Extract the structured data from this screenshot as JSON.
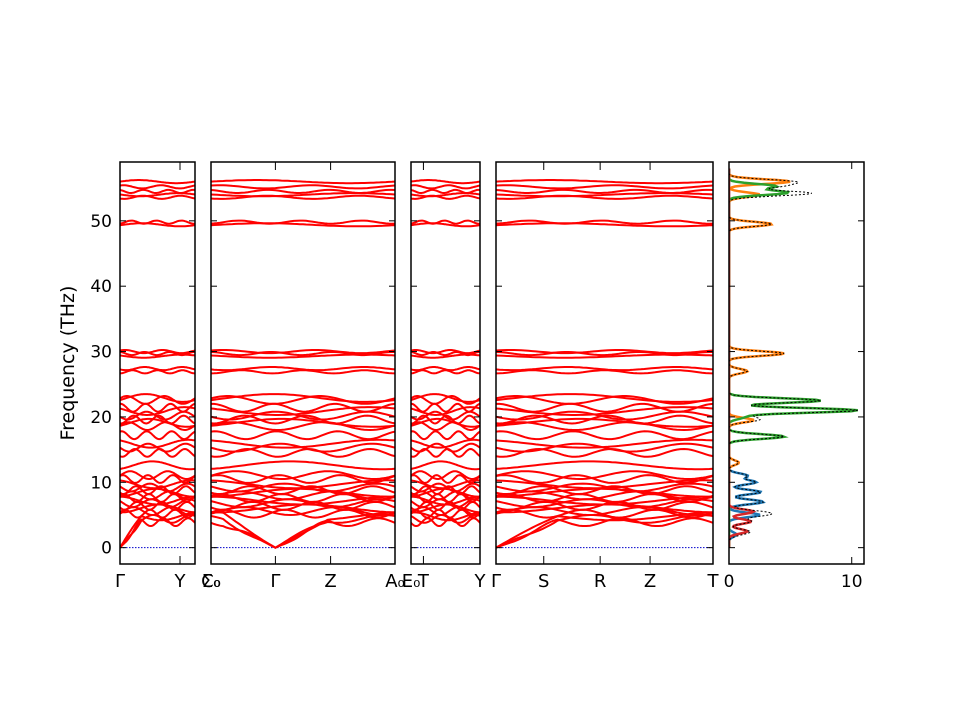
{
  "chart_data": {
    "type": "line",
    "ylabel": "Frequency (THz)",
    "ylim": [
      -2.5,
      59
    ],
    "yticks": [
      0,
      10,
      20,
      30,
      40,
      50
    ],
    "zero_line_color": "#0000cc",
    "band_color": "#ff0000",
    "band_levels": [
      56.0,
      55.2,
      54.5,
      54.0,
      53.6,
      49.8,
      49.4,
      30.0,
      29.7,
      29.3,
      27.4,
      26.9,
      22.9,
      22.6,
      21.4,
      20.9,
      20.2,
      19.6,
      19.1,
      18.6,
      17.2,
      15.9,
      15.3,
      14.5,
      12.6,
      11.1,
      10.5,
      9.7,
      9.2,
      8.8,
      8.4,
      8.0,
      7.6,
      7.2,
      6.8,
      6.4,
      6.0,
      5.6,
      5.2,
      4.8,
      4.4,
      3.9
    ],
    "band_segments": [
      {
        "labels": [
          "Γ",
          "Y"
        ],
        "label_xfrac": [
          0.0,
          0.8
        ],
        "kmax": 1
      },
      {
        "labels": [
          "C₀",
          "Σ₀",
          "Γ",
          "Z",
          "A₀"
        ],
        "label_xfrac": [
          0.0,
          0.0,
          0.35,
          0.65,
          1.0
        ],
        "kmax": 1
      },
      {
        "labels": [
          "E₀",
          "T",
          "Y"
        ],
        "label_xfrac": [
          0.0,
          0.18,
          1.0
        ],
        "kmax": 1
      },
      {
        "labels": [
          "Γ",
          "S",
          "R",
          "Z",
          "T"
        ],
        "label_xfrac": [
          0.0,
          0.22,
          0.48,
          0.71,
          1.0
        ],
        "kmax": 1
      }
    ],
    "dos": {
      "xlim": [
        0,
        11
      ],
      "xticks": [
        0,
        10
      ],
      "series": [
        {
          "color": "#1f77b4",
          "peaks": [
            [
              2.0,
              0.6
            ],
            [
              5.0,
              2.5
            ],
            [
              7.0,
              2.8
            ],
            [
              8.5,
              2.6
            ],
            [
              10.0,
              2.2
            ],
            [
              11.0,
              1.5
            ]
          ]
        },
        {
          "color": "#ff7f0e",
          "peaks": [
            [
              13.0,
              0.8
            ],
            [
              19.5,
              2.0
            ],
            [
              27.0,
              1.5
            ],
            [
              29.7,
              4.5
            ],
            [
              49.5,
              3.5
            ],
            [
              54.0,
              2.5
            ],
            [
              56.0,
              5.0
            ]
          ]
        },
        {
          "color": "#2ca02c",
          "peaks": [
            [
              17.0,
              4.5
            ],
            [
              20.0,
              1.2
            ],
            [
              21.0,
              10.5
            ],
            [
              22.5,
              7.5
            ],
            [
              54.3,
              4.8
            ],
            [
              55.3,
              3.8
            ]
          ]
        },
        {
          "color": "#d62728",
          "peaks": [
            [
              2.5,
              1.5
            ],
            [
              4.0,
              1.8
            ],
            [
              5.5,
              2.0
            ]
          ]
        }
      ],
      "total_color": "#000000"
    }
  }
}
